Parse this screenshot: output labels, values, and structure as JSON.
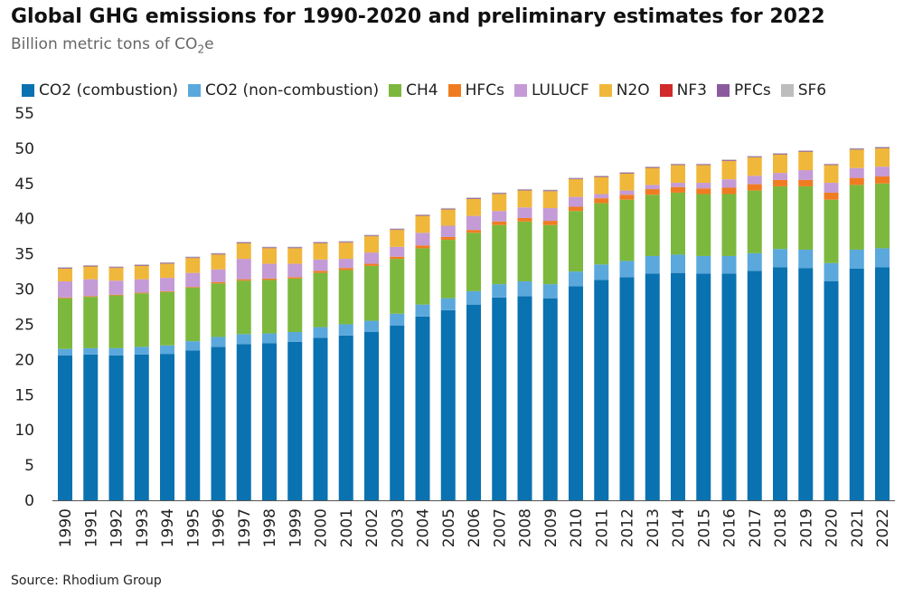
{
  "chart_data": {
    "type": "bar",
    "stacked": true,
    "title": "Global GHG emissions for 1990-2020 and preliminary estimates for 2022",
    "subtitle_base": "Billion metric tons of CO",
    "subtitle_sub": "2",
    "subtitle_end": "e",
    "source": "Source: Rhodium Group",
    "ylim": [
      0,
      55
    ],
    "yticks": [
      0,
      5,
      10,
      15,
      20,
      25,
      30,
      35,
      40,
      45,
      50,
      55
    ],
    "legend_position": "top",
    "categories": [
      "1990",
      "1991",
      "1992",
      "1993",
      "1994",
      "1995",
      "1996",
      "1997",
      "1998",
      "1999",
      "2000",
      "2001",
      "2002",
      "2003",
      "2004",
      "2005",
      "2006",
      "2007",
      "2008",
      "2009",
      "2010",
      "2011",
      "2012",
      "2013",
      "2014",
      "2015",
      "2016",
      "2017",
      "2018",
      "2019",
      "2020",
      "2021",
      "2022"
    ],
    "series": [
      {
        "name": "CO2 (combustion)",
        "color": "#0a72b0",
        "values": [
          20.6,
          20.7,
          20.6,
          20.7,
          20.8,
          21.3,
          21.8,
          22.2,
          22.3,
          22.5,
          23.1,
          23.4,
          23.9,
          24.8,
          26.1,
          27.0,
          27.8,
          28.8,
          29.0,
          28.7,
          30.4,
          31.3,
          31.7,
          32.2,
          32.3,
          32.2,
          32.2,
          32.6,
          33.1,
          33.0,
          31.1,
          32.9,
          33.1
        ]
      },
      {
        "name": "CO2 (non-combustion)",
        "color": "#5ba8dd",
        "values": [
          0.9,
          0.9,
          1.0,
          1.1,
          1.2,
          1.3,
          1.4,
          1.4,
          1.4,
          1.4,
          1.5,
          1.6,
          1.6,
          1.7,
          1.7,
          1.7,
          1.9,
          1.9,
          2.1,
          2.0,
          2.1,
          2.2,
          2.3,
          2.5,
          2.6,
          2.5,
          2.5,
          2.5,
          2.6,
          2.6,
          2.6,
          2.7,
          2.7
        ]
      },
      {
        "name": "CH4",
        "color": "#7cb83e",
        "values": [
          7.2,
          7.3,
          7.5,
          7.6,
          7.6,
          7.6,
          7.6,
          7.6,
          7.6,
          7.6,
          7.7,
          7.7,
          7.8,
          7.8,
          8.0,
          8.3,
          8.3,
          8.4,
          8.5,
          8.4,
          8.6,
          8.7,
          8.7,
          8.7,
          8.8,
          8.8,
          8.8,
          8.9,
          8.9,
          9.0,
          9.0,
          9.2,
          9.2
        ]
      },
      {
        "name": "HFCs",
        "color": "#f07c22",
        "values": [
          0.1,
          0.1,
          0.1,
          0.1,
          0.1,
          0.1,
          0.2,
          0.2,
          0.2,
          0.2,
          0.3,
          0.3,
          0.3,
          0.3,
          0.4,
          0.4,
          0.4,
          0.5,
          0.5,
          0.6,
          0.6,
          0.7,
          0.7,
          0.8,
          0.8,
          0.8,
          0.9,
          0.9,
          0.9,
          0.9,
          1.0,
          1.0,
          1.0
        ]
      },
      {
        "name": "LULUCF",
        "color": "#c49bd6",
        "values": [
          2.3,
          2.4,
          2.0,
          1.9,
          1.9,
          2.0,
          1.8,
          2.9,
          2.1,
          1.9,
          1.6,
          1.3,
          1.6,
          1.4,
          1.8,
          1.6,
          2.0,
          1.5,
          1.5,
          1.8,
          1.4,
          0.6,
          0.6,
          0.6,
          0.6,
          0.8,
          1.2,
          1.2,
          1.0,
          1.4,
          1.4,
          1.4,
          1.4
        ]
      },
      {
        "name": "N2O",
        "color": "#f0b83a",
        "values": [
          1.8,
          1.8,
          1.8,
          1.9,
          2.0,
          2.1,
          2.1,
          2.2,
          2.2,
          2.2,
          2.3,
          2.3,
          2.3,
          2.4,
          2.4,
          2.3,
          2.4,
          2.4,
          2.4,
          2.4,
          2.5,
          2.4,
          2.4,
          2.4,
          2.5,
          2.5,
          2.6,
          2.6,
          2.6,
          2.6,
          2.5,
          2.6,
          2.6
        ]
      },
      {
        "name": "NF3",
        "color": "#d12b2b",
        "values": [
          0.02,
          0.02,
          0.02,
          0.02,
          0.02,
          0.02,
          0.02,
          0.02,
          0.02,
          0.02,
          0.02,
          0.02,
          0.02,
          0.02,
          0.02,
          0.02,
          0.02,
          0.02,
          0.02,
          0.02,
          0.02,
          0.02,
          0.02,
          0.02,
          0.02,
          0.02,
          0.02,
          0.02,
          0.02,
          0.02,
          0.02,
          0.02,
          0.02
        ]
      },
      {
        "name": "PFCs",
        "color": "#8a5a9e",
        "values": [
          0.1,
          0.1,
          0.1,
          0.1,
          0.1,
          0.1,
          0.1,
          0.1,
          0.1,
          0.1,
          0.1,
          0.1,
          0.1,
          0.1,
          0.1,
          0.1,
          0.1,
          0.1,
          0.1,
          0.1,
          0.1,
          0.1,
          0.1,
          0.1,
          0.1,
          0.1,
          0.1,
          0.1,
          0.1,
          0.1,
          0.1,
          0.1,
          0.1
        ]
      },
      {
        "name": "SF6",
        "color": "#bdbdbd",
        "values": [
          0.1,
          0.1,
          0.1,
          0.1,
          0.1,
          0.1,
          0.1,
          0.1,
          0.1,
          0.1,
          0.1,
          0.1,
          0.1,
          0.1,
          0.1,
          0.1,
          0.1,
          0.1,
          0.1,
          0.1,
          0.1,
          0.1,
          0.1,
          0.1,
          0.1,
          0.1,
          0.1,
          0.1,
          0.1,
          0.1,
          0.1,
          0.1,
          0.1
        ]
      }
    ]
  }
}
